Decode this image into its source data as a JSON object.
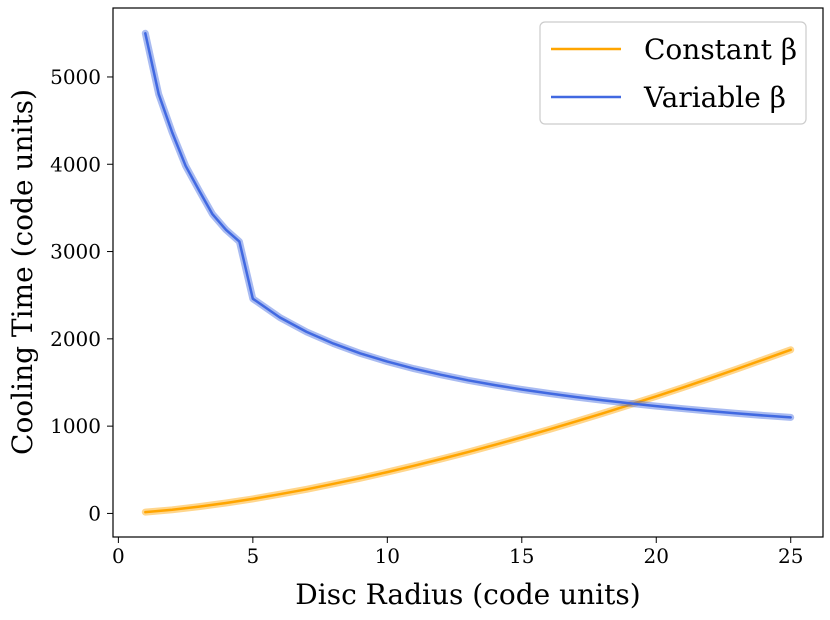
{
  "chart_data": {
    "type": "line",
    "title": "",
    "xlabel": "Disc Radius (code units)",
    "ylabel": "Cooling Time (code units)",
    "xlim": [
      -0.2,
      26.2
    ],
    "ylim": [
      -270,
      5790
    ],
    "xticks": [
      0,
      5,
      10,
      15,
      20,
      25
    ],
    "yticks": [
      0,
      1000,
      2000,
      3000,
      4000,
      5000
    ],
    "grid": false,
    "legend_position": "top-right",
    "series": [
      {
        "name": "Constant β",
        "color": "#FFA500",
        "x": [
          1,
          2,
          3,
          4,
          5,
          6,
          7,
          8,
          9,
          10,
          11,
          12,
          13,
          14,
          15,
          16,
          17,
          18,
          19,
          20,
          21,
          22,
          23,
          24,
          25
        ],
        "y": [
          15,
          42,
          78,
          120,
          167,
          220,
          277,
          339,
          404,
          474,
          547,
          623,
          703,
          786,
          872,
          960,
          1052,
          1146,
          1243,
          1342,
          1444,
          1548,
          1655,
          1764,
          1875
        ]
      },
      {
        "name": "Variable β",
        "color": "#4169E1",
        "x": [
          1,
          1.5,
          2,
          2.5,
          3,
          3.5,
          4,
          4.5,
          5,
          6,
          7,
          8,
          9,
          10,
          11,
          12,
          13,
          14,
          15,
          16,
          17,
          18,
          19,
          20,
          21,
          22,
          23,
          24,
          25
        ],
        "y": [
          5500,
          4802,
          4364,
          3982,
          3699,
          3428,
          3249,
          3114,
          2460,
          2246,
          2079,
          1945,
          1833,
          1739,
          1658,
          1588,
          1525,
          1470,
          1420,
          1375,
          1334,
          1296,
          1262,
          1230,
          1200,
          1172,
          1146,
          1122,
          1100
        ]
      }
    ]
  }
}
